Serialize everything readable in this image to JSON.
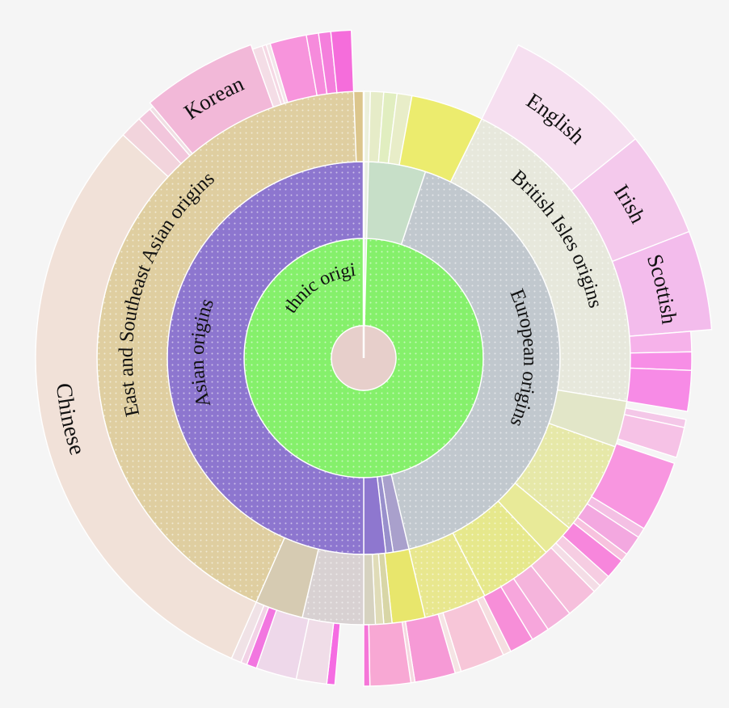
{
  "chart_data": {
    "type": "sunburst",
    "levels": [
      {
        "name": "root",
        "color": "#e7cfcb",
        "label": ""
      },
      {
        "name": "Ethnic origin",
        "label": "Ethnic origin",
        "segments": [
          {
            "from": 0,
            "to": 0.004,
            "color": "#d7ecd3",
            "label": ""
          },
          {
            "from": 0.004,
            "to": 1.0,
            "color": "#85f06b",
            "label": "Ethnic origin",
            "pattern": true
          }
        ]
      }
    ],
    "ring2": [
      {
        "from": 0.0,
        "to": 0.004,
        "color": "#e8efe0",
        "label": ""
      },
      {
        "from": 0.004,
        "to": 0.051,
        "color": "#c7dfc8",
        "label": ""
      },
      {
        "from": 0.051,
        "to": 0.463,
        "color": "#c1c8ce",
        "label": "European origins",
        "pattern": true
      },
      {
        "from": 0.463,
        "to": 0.476,
        "color": "#a9a0cc",
        "label": ""
      },
      {
        "from": 0.476,
        "to": 0.482,
        "color": "#9990cc",
        "label": ""
      },
      {
        "from": 0.482,
        "to": 0.5,
        "color": "#8e77cf",
        "label": ""
      },
      {
        "from": 0.5,
        "to": 1.0,
        "color": "#8d76cf",
        "label": "Asian origins",
        "pattern": true
      }
    ],
    "ring3": [
      {
        "from": 0.0,
        "to": 0.004,
        "color": "#ecf0dc",
        "label": ""
      },
      {
        "from": 0.004,
        "to": 0.012,
        "color": "#e6ecc8",
        "label": ""
      },
      {
        "from": 0.012,
        "to": 0.02,
        "color": "#e1eec0",
        "label": ""
      },
      {
        "from": 0.02,
        "to": 0.029,
        "color": "#e8edc8",
        "label": ""
      },
      {
        "from": 0.029,
        "to": 0.073,
        "color": "#ecec6e",
        "label": ""
      },
      {
        "from": 0.073,
        "to": 0.276,
        "color": "#e7e8dc",
        "label": "British Isles origins",
        "pattern": true
      },
      {
        "from": 0.276,
        "to": 0.304,
        "color": "#e2e6c8",
        "label": ""
      },
      {
        "from": 0.304,
        "to": 0.36,
        "color": "#e6e8a8",
        "label": "",
        "pattern": true
      },
      {
        "from": 0.36,
        "to": 0.38,
        "color": "#e8ea98",
        "label": ""
      },
      {
        "from": 0.38,
        "to": 0.425,
        "color": "#e6e88c",
        "label": "",
        "pattern": true
      },
      {
        "from": 0.425,
        "to": 0.463,
        "color": "#e8e78e",
        "label": "",
        "pattern": true
      },
      {
        "from": 0.463,
        "to": 0.483,
        "color": "#e8e66c",
        "label": ""
      },
      {
        "from": 0.483,
        "to": 0.488,
        "color": "#d8d6a6",
        "label": ""
      },
      {
        "from": 0.488,
        "to": 0.493,
        "color": "#e0dcb8",
        "label": ""
      },
      {
        "from": 0.493,
        "to": 0.5,
        "color": "#d6d2c0",
        "label": ""
      },
      {
        "from": 0.5,
        "to": 0.537,
        "color": "#d8d1d2",
        "label": "",
        "pattern": true
      },
      {
        "from": 0.537,
        "to": 0.566,
        "color": "#d6cbb2",
        "label": ""
      },
      {
        "from": 0.566,
        "to": 0.994,
        "color": "#dfcea0",
        "label": "East and Southeast Asian origins",
        "pattern": true
      },
      {
        "from": 0.994,
        "to": 1.0,
        "color": "#dcc68c",
        "label": ""
      }
    ],
    "ring4": [
      {
        "from": 0.073,
        "to": 0.142,
        "color": "#f6dff0",
        "label": "English"
      },
      {
        "from": 0.142,
        "to": 0.191,
        "color": "#f4c9ec",
        "label": "Irish"
      },
      {
        "from": 0.191,
        "to": 0.237,
        "color": "#f3bcec",
        "label": "Scottish"
      },
      {
        "from": 0.237,
        "to": 0.247,
        "color": "#f6b2ea",
        "label": ""
      },
      {
        "from": 0.247,
        "to": 0.256,
        "color": "#f78ee6",
        "label": ""
      },
      {
        "from": 0.256,
        "to": 0.276,
        "color": "#f78be6",
        "label": ""
      },
      {
        "from": 0.28,
        "to": 0.284,
        "color": "#f4c7e8",
        "label": ""
      },
      {
        "from": 0.284,
        "to": 0.299,
        "color": "#f6c2e6",
        "label": ""
      },
      {
        "from": 0.302,
        "to": 0.337,
        "color": "#f896e0",
        "label": ""
      },
      {
        "from": 0.337,
        "to": 0.342,
        "color": "#f4c0e4",
        "label": ""
      },
      {
        "from": 0.342,
        "to": 0.352,
        "color": "#f3a8e0",
        "label": ""
      },
      {
        "from": 0.352,
        "to": 0.356,
        "color": "#f7c2de",
        "label": ""
      },
      {
        "from": 0.356,
        "to": 0.366,
        "color": "#f786dc",
        "label": ""
      },
      {
        "from": 0.366,
        "to": 0.372,
        "color": "#f6cde2",
        "label": ""
      },
      {
        "from": 0.372,
        "to": 0.376,
        "color": "#f4dde6",
        "label": ""
      },
      {
        "from": 0.376,
        "to": 0.392,
        "color": "#f6bfdc",
        "label": ""
      },
      {
        "from": 0.392,
        "to": 0.405,
        "color": "#f5b4dc",
        "label": ""
      },
      {
        "from": 0.405,
        "to": 0.414,
        "color": "#f7a6dc",
        "label": ""
      },
      {
        "from": 0.414,
        "to": 0.426,
        "color": "#f78ed8",
        "label": ""
      },
      {
        "from": 0.426,
        "to": 0.43,
        "color": "#f5dee0",
        "label": ""
      },
      {
        "from": 0.43,
        "to": 0.452,
        "color": "#f7c6d8",
        "label": ""
      },
      {
        "from": 0.452,
        "to": 0.455,
        "color": "#f5e4e4",
        "label": ""
      },
      {
        "from": 0.455,
        "to": 0.475,
        "color": "#f69ad6",
        "label": ""
      },
      {
        "from": 0.475,
        "to": 0.477,
        "color": "#f5d8e0",
        "label": ""
      },
      {
        "from": 0.477,
        "to": 0.497,
        "color": "#f8a8d4",
        "label": ""
      },
      {
        "from": 0.497,
        "to": 0.5,
        "color": "#f576d8",
        "label": ""
      },
      {
        "from": 0.514,
        "to": 0.518,
        "color": "#f56ce2",
        "label": ""
      },
      {
        "from": 0.518,
        "to": 0.533,
        "color": "#f0dde8",
        "label": ""
      },
      {
        "from": 0.533,
        "to": 0.553,
        "color": "#eed8ea",
        "label": ""
      },
      {
        "from": 0.553,
        "to": 0.558,
        "color": "#f276e0",
        "label": ""
      },
      {
        "from": 0.558,
        "to": 0.561,
        "color": "#f2d2e6",
        "label": ""
      },
      {
        "from": 0.561,
        "to": 0.566,
        "color": "#f0e2e6",
        "label": ""
      },
      {
        "from": 0.566,
        "to": 0.869,
        "color": "#f1e1d8",
        "label": "Chinese"
      },
      {
        "from": 0.869,
        "to": 0.88,
        "color": "#f2d4dc",
        "label": ""
      },
      {
        "from": 0.88,
        "to": 0.887,
        "color": "#f2c6dc",
        "label": ""
      },
      {
        "from": 0.887,
        "to": 0.889,
        "color": "#f0e0e4",
        "label": ""
      },
      {
        "from": 0.889,
        "to": 0.945,
        "color": "#f2b8d8",
        "label": "Korean"
      },
      {
        "from": 0.945,
        "to": 0.95,
        "color": "#f4dde6",
        "label": ""
      },
      {
        "from": 0.95,
        "to": 0.952,
        "color": "#f5d8e4",
        "label": ""
      },
      {
        "from": 0.952,
        "to": 0.954,
        "color": "#f3e6ea",
        "label": ""
      },
      {
        "from": 0.954,
        "to": 0.972,
        "color": "#f794dc",
        "label": ""
      },
      {
        "from": 0.972,
        "to": 0.978,
        "color": "#f68bdc",
        "label": ""
      },
      {
        "from": 0.978,
        "to": 0.984,
        "color": "#f47fdc",
        "label": ""
      },
      {
        "from": 0.984,
        "to": 0.994,
        "color": "#f56ddb",
        "label": ""
      }
    ],
    "center_line": true
  }
}
